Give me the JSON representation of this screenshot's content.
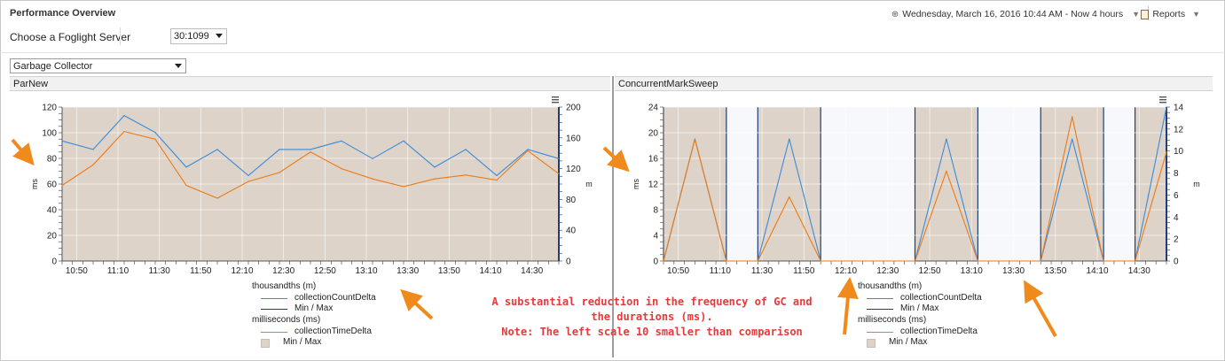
{
  "header": {
    "title": "Performance Overview",
    "time_range": "Wednesday, March 16, 2016 10:44 AM - Now 4 hours",
    "reports_label": "Reports"
  },
  "server": {
    "label": "Choose a Foglight Server",
    "value": "30:1099"
  },
  "collector_select": {
    "value": "Garbage Collector"
  },
  "panels": {
    "left": {
      "title": "ParNew",
      "legend": {
        "count_group": "thousandths (m)",
        "count_series": "collectionCountDelta",
        "count_minmax": "Min / Max",
        "time_group": "milliseconds (ms)",
        "time_series": "collectionTimeDelta",
        "time_minmax": "Min / Max"
      }
    },
    "right": {
      "title": "ConcurrentMarkSweep",
      "legend": {
        "count_group": "thousandths (m)",
        "count_series": "collectionCountDelta",
        "count_minmax": "Min / Max",
        "time_group": "milliseconds (ms)",
        "time_series": "collectionTimeDelta",
        "time_minmax": "Min / Max"
      }
    }
  },
  "annotation": {
    "line1": "A substantial reduction in the frequency of GC and",
    "line2": "the durations (ms).",
    "line3": "Note: The left scale 10 smaller than comparison"
  },
  "colors": {
    "count_line": "#3b8bd9",
    "time_line": "#ec7a16",
    "minmax_fill": "#ddd3c8",
    "annotation": "#e63a3a",
    "arrow": "#f08a1c"
  },
  "chart_data": [
    {
      "type": "line",
      "title": "ParNew",
      "x_ticks": [
        "10:50",
        "11:10",
        "11:30",
        "11:50",
        "12:10",
        "12:30",
        "12:50",
        "13:10",
        "13:30",
        "13:50",
        "14:10",
        "14:30"
      ],
      "x_range": [
        "10:43",
        "14:43"
      ],
      "ylabel_left": "ms",
      "ylabel_right": "m",
      "ylim_left": [
        0,
        120
      ],
      "ylim_right": [
        0,
        200
      ],
      "y_ticks_left": [
        0,
        20,
        40,
        60,
        80,
        100,
        120
      ],
      "y_ticks_right": [
        0,
        40,
        80,
        120,
        160,
        200
      ],
      "grid": true,
      "series": [
        {
          "name": "collectionCountDelta",
          "axis": "right",
          "x": [
            "10:43",
            "10:58",
            "11:13",
            "11:28",
            "11:43",
            "11:58",
            "12:13",
            "12:28",
            "12:43",
            "12:58",
            "13:13",
            "13:28",
            "13:43",
            "13:58",
            "14:13",
            "14:28",
            "14:43"
          ],
          "values": [
            156,
            145,
            189,
            167,
            122,
            145,
            111,
            145,
            145,
            156,
            133,
            156,
            122,
            145,
            111,
            145,
            133
          ]
        },
        {
          "name": "collectionTimeDelta",
          "axis": "left",
          "x": [
            "10:43",
            "10:58",
            "11:13",
            "11:28",
            "11:43",
            "11:58",
            "12:13",
            "12:28",
            "12:43",
            "12:58",
            "13:13",
            "13:28",
            "13:43",
            "13:58",
            "14:13",
            "14:28",
            "14:43"
          ],
          "values": [
            59,
            75,
            101,
            95,
            59,
            49,
            62,
            69,
            85,
            72,
            64,
            58,
            64,
            67,
            63,
            86,
            68
          ]
        }
      ]
    },
    {
      "type": "line",
      "title": "ConcurrentMarkSweep",
      "x_ticks": [
        "10:50",
        "11:10",
        "11:30",
        "11:50",
        "12:10",
        "12:30",
        "12:50",
        "13:10",
        "13:30",
        "13:50",
        "14:10",
        "14:30"
      ],
      "x_range": [
        "10:43",
        "14:43"
      ],
      "ylabel_left": "ms",
      "ylabel_right": "m",
      "ylim_left": [
        0,
        24
      ],
      "ylim_right": [
        0,
        14
      ],
      "y_ticks_left": [
        0,
        4,
        8,
        12,
        16,
        20,
        24
      ],
      "y_ticks_right": [
        0,
        2,
        4,
        6,
        8,
        10,
        12,
        14
      ],
      "grid": true,
      "minmax_bands": [
        [
          "10:43",
          "11:13"
        ],
        [
          "11:28",
          "11:58"
        ],
        [
          "12:43",
          "13:13"
        ],
        [
          "13:43",
          "14:13"
        ],
        [
          "14:28",
          "14:43"
        ]
      ],
      "series": [
        {
          "name": "collectionCountDelta",
          "axis": "right",
          "x": [
            "10:43",
            "10:58",
            "11:13",
            "11:28",
            "11:43",
            "11:58",
            "12:13",
            "12:28",
            "12:43",
            "12:58",
            "13:13",
            "13:28",
            "13:43",
            "13:58",
            "14:13",
            "14:28",
            "14:43"
          ],
          "values": [
            0,
            11.1,
            0,
            0,
            11.1,
            0,
            0,
            0,
            0,
            11.1,
            0,
            0,
            0,
            11.1,
            0,
            0,
            14
          ]
        },
        {
          "name": "collectionTimeDelta",
          "axis": "left",
          "x": [
            "10:43",
            "10:58",
            "11:13",
            "11:28",
            "11:43",
            "11:58",
            "12:13",
            "12:28",
            "12:43",
            "12:58",
            "13:13",
            "13:28",
            "13:43",
            "13:58",
            "14:13",
            "14:28",
            "14:43"
          ],
          "values": [
            0,
            19,
            0,
            0,
            10,
            0,
            0,
            0,
            0,
            14,
            0,
            0,
            0,
            22.5,
            0,
            0,
            17
          ]
        }
      ]
    }
  ]
}
